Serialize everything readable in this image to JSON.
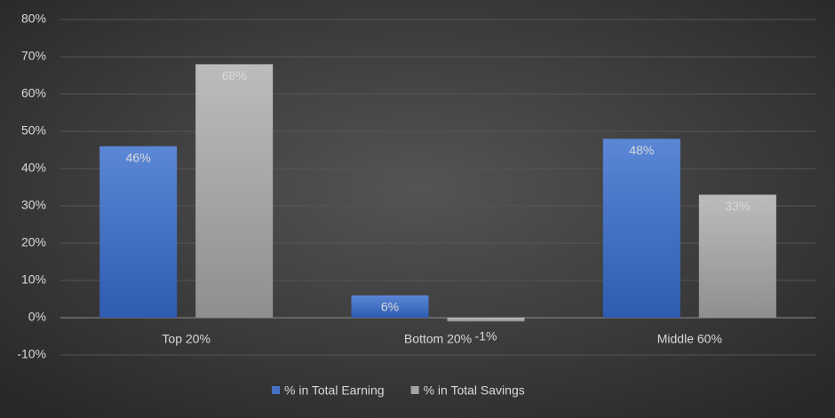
{
  "chart_data": {
    "type": "bar",
    "categories": [
      "Top 20%",
      "Bottom 20%",
      "Middle 60%"
    ],
    "series": [
      {
        "name": "% in Total Earning",
        "color": "#4472c4",
        "values": [
          46,
          6,
          48
        ],
        "value_labels": [
          "46%",
          "6%",
          "48%"
        ]
      },
      {
        "name": "% in Total Savings",
        "color": "#a5a5a5",
        "values": [
          68,
          -1,
          33
        ],
        "value_labels": [
          "68%",
          "-1%",
          "33%"
        ]
      }
    ],
    "ylim": [
      -10,
      80
    ],
    "yticks": [
      {
        "value": -10,
        "label": "-10%"
      },
      {
        "value": 0,
        "label": "0%"
      },
      {
        "value": 10,
        "label": "10%"
      },
      {
        "value": 20,
        "label": "20%"
      },
      {
        "value": 30,
        "label": "30%"
      },
      {
        "value": 40,
        "label": "40%"
      },
      {
        "value": 50,
        "label": "50%"
      },
      {
        "value": 60,
        "label": "60%"
      },
      {
        "value": 70,
        "label": "70%"
      },
      {
        "value": 80,
        "label": "80%"
      }
    ],
    "grid": true,
    "legend": "bottom"
  }
}
